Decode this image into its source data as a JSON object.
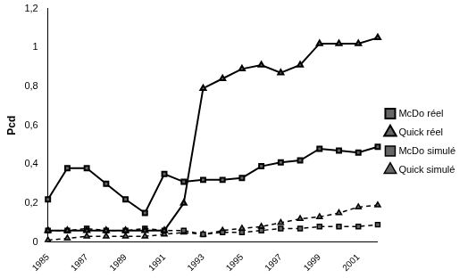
{
  "chart_data": {
    "type": "line",
    "y_label": "Pcd",
    "categories": [
      "1985",
      null,
      "1987",
      null,
      "1989",
      null,
      "1991",
      null,
      "1993",
      null,
      "1995",
      null,
      "1997",
      null,
      "1999",
      null,
      "2001",
      null
    ],
    "ylim": [
      0,
      1.2
    ],
    "yticks": [
      0,
      {
        "value": 0.2,
        "label": "0,2"
      },
      {
        "value": 0.4,
        "label": "0,4"
      },
      {
        "value": 0.6,
        "label": "0,6"
      },
      {
        "value": 0.8,
        "label": "0,8"
      },
      1,
      {
        "value": 1.2,
        "label": "1,2"
      }
    ],
    "grid": false,
    "legend": "right",
    "series": [
      {
        "name": "McDo réel",
        "color": "#000000",
        "marker": "square",
        "line_style": "solid",
        "values": [
          0.22,
          0.38,
          0.38,
          0.3,
          0.22,
          0.15,
          0.35,
          0.31,
          0.32,
          0.32,
          0.33,
          0.39,
          0.41,
          0.42,
          0.48,
          0.47,
          0.46,
          0.49
        ]
      },
      {
        "name": "Quick réel",
        "color": "#000000",
        "marker": "triangle",
        "line_style": "solid",
        "values": [
          0.06,
          0.06,
          0.06,
          0.06,
          0.06,
          0.06,
          0.06,
          0.2,
          0.79,
          0.84,
          0.89,
          0.91,
          0.87,
          0.91,
          1.02,
          1.02,
          1.02,
          1.05
        ]
      },
      {
        "name": "McDo simulé",
        "color": "#000000",
        "marker": "square",
        "line_style": "dashed",
        "values": [
          0.06,
          0.06,
          0.07,
          0.06,
          0.06,
          0.07,
          0.06,
          0.06,
          0.04,
          0.05,
          0.05,
          0.06,
          0.07,
          0.07,
          0.08,
          0.08,
          0.08,
          0.09
        ]
      },
      {
        "name": "Quick simulé",
        "color": "#000000",
        "marker": "triangle",
        "line_style": "dashed",
        "values": [
          0.01,
          0.02,
          0.03,
          0.03,
          0.03,
          0.03,
          0.04,
          0.05,
          0.04,
          0.06,
          0.07,
          0.08,
          0.1,
          0.12,
          0.13,
          0.15,
          0.18,
          0.19
        ]
      }
    ]
  }
}
